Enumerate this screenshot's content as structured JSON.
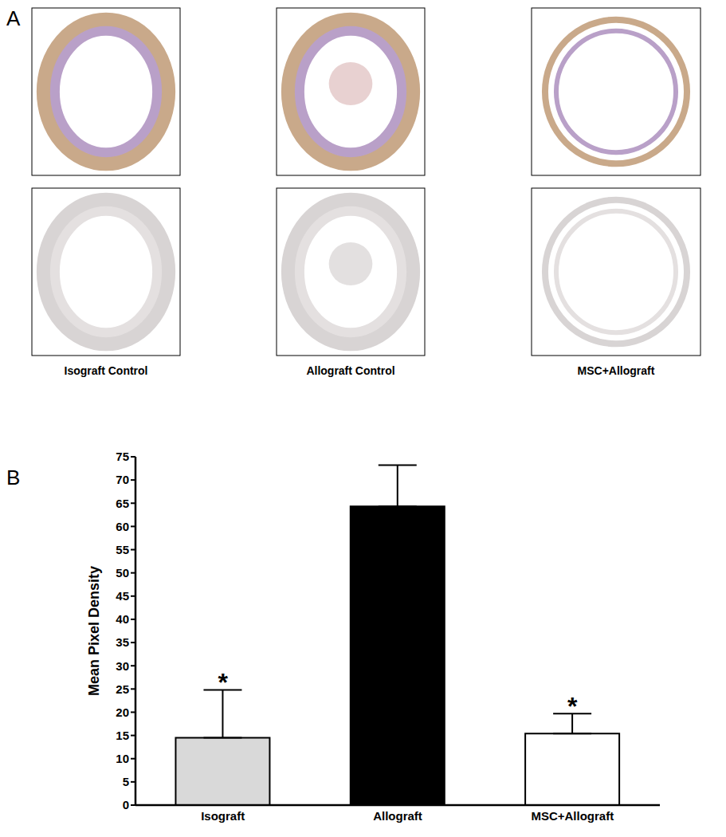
{
  "figure": {
    "panel_labels": [
      "A",
      "B"
    ],
    "micrograph_captions": [
      "Isograft Control",
      "Allograft Control",
      "MSC+Allograft"
    ]
  },
  "chart_data": {
    "type": "bar",
    "categories": [
      "Isograft",
      "Allograft",
      "MSC+Allograft"
    ],
    "values": [
      14.5,
      64.3,
      15.4
    ],
    "errors": [
      10.3,
      8.9,
      4.3
    ],
    "colors": [
      "#d9d9d9",
      "#000000",
      "#ffffff"
    ],
    "y_label": "Mean Pixel Density",
    "ylim": [
      0,
      75
    ],
    "yticks": [
      0,
      5,
      10,
      15,
      20,
      25,
      30,
      35,
      40,
      45,
      50,
      55,
      60,
      65,
      70,
      75
    ],
    "annotations": [
      {
        "category": "Isograft",
        "text": "*"
      },
      {
        "category": "MSC+Allograft",
        "text": "*"
      }
    ],
    "grid": false
  }
}
